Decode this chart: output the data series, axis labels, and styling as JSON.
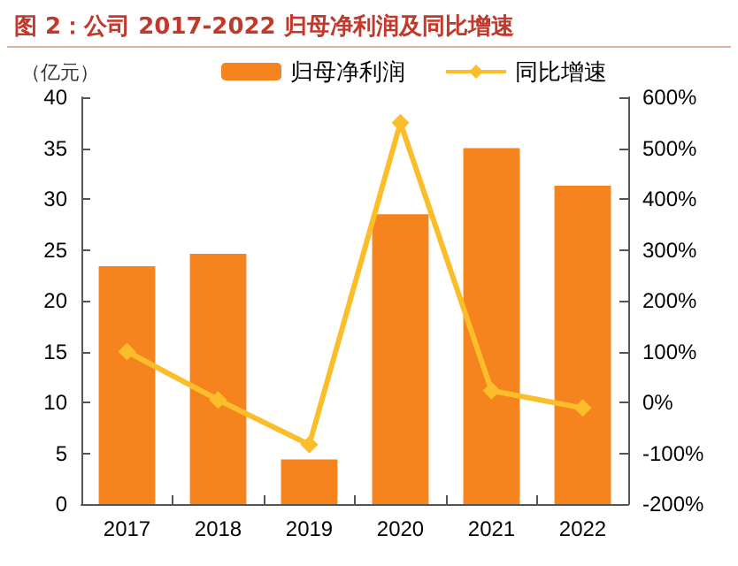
{
  "chart_data": {
    "type": "bar",
    "title": "图 2：公司 2017-2022 归母净利润及同比增速",
    "ylabel": "（亿元）",
    "categories": [
      "2017",
      "2018",
      "2019",
      "2020",
      "2021",
      "2022"
    ],
    "series": [
      {
        "name": "归母净利润",
        "color": "#f5841f",
        "values": [
          23.4,
          24.6,
          4.4,
          28.5,
          35.0,
          31.3
        ]
      },
      {
        "name": "同比增速",
        "type": "line",
        "axis": "y2",
        "color": "#fbbe2a",
        "marker": "diamond",
        "values": [
          100,
          5,
          -83,
          550,
          23,
          -11
        ]
      }
    ],
    "ylim": [
      0,
      40
    ],
    "yticks": [
      0,
      5,
      10,
      15,
      20,
      25,
      30,
      35,
      40
    ],
    "y2lim": [
      -200,
      600
    ],
    "y2ticks": [
      {
        "value": -200,
        "label": "-200%"
      },
      {
        "value": -100,
        "label": "-100%"
      },
      {
        "value": 0,
        "label": "0%"
      },
      {
        "value": 100,
        "label": "100%"
      },
      {
        "value": 200,
        "label": "200%"
      },
      {
        "value": 300,
        "label": "300%"
      },
      {
        "value": 400,
        "label": "400%"
      },
      {
        "value": 500,
        "label": "500%"
      },
      {
        "value": 600,
        "label": "600%"
      }
    ],
    "grid": false,
    "legend": "top"
  }
}
